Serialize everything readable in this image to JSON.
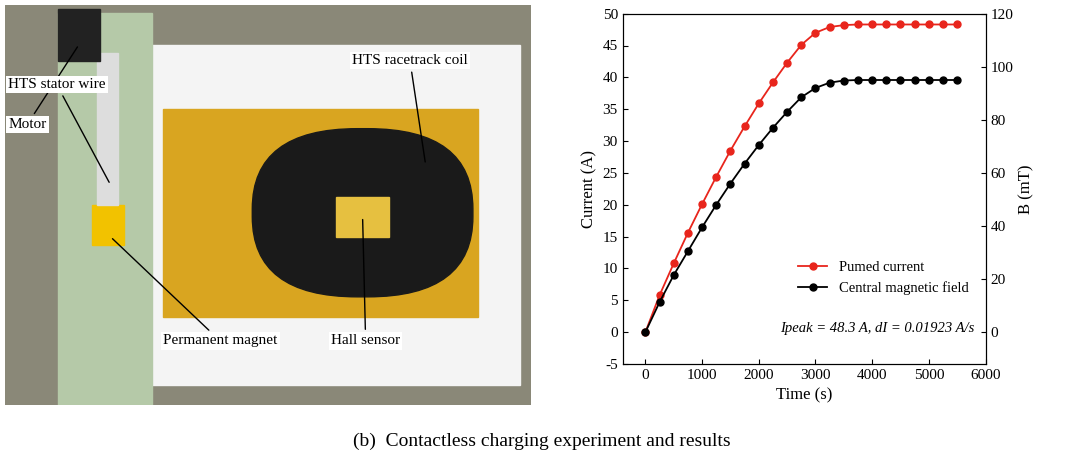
{
  "caption": "(b)  Contactless charging experiment and results",
  "photo": {
    "labels": [
      "Motor",
      "HTS stator wire",
      "Permanent magnet",
      "HTS racetrack coil",
      "Hall sensor"
    ]
  },
  "chart_data": {
    "type": "line",
    "xlabel": "Time (s)",
    "ylabel": "Current (A)",
    "y2label": "B (mT)",
    "x": [
      0,
      250,
      500,
      750,
      1000,
      1250,
      1500,
      1750,
      2000,
      2250,
      2500,
      2750,
      3000,
      3250,
      3500,
      3750,
      4000,
      4250,
      4500,
      4750,
      5000,
      5250,
      5500
    ],
    "series": [
      {
        "name": "Pumed current",
        "color": "#e8251c",
        "marker": "o",
        "axis": "y",
        "values": [
          0,
          5.8,
          10.8,
          15.6,
          20.1,
          24.4,
          28.5,
          32.3,
          35.9,
          39.2,
          42.3,
          45.1,
          47.0,
          47.9,
          48.2,
          48.3,
          48.3,
          48.3,
          48.3,
          48.3,
          48.3,
          48.3,
          48.3
        ]
      },
      {
        "name": "Central magnetic field",
        "color": "#000000",
        "marker": "o",
        "axis": "y2",
        "values": [
          0,
          11.3,
          21.5,
          30.5,
          39.5,
          48.0,
          56.0,
          63.5,
          70.5,
          77.0,
          83.0,
          88.5,
          92.0,
          94.0,
          94.8,
          95.0,
          95.0,
          95.0,
          95.0,
          95.0,
          95.0,
          95.0,
          95.0
        ]
      }
    ],
    "annotations": [
      "Ipeak = 48.3 A, dI = 0.01923 A/s"
    ],
    "xlim": [
      -400,
      6000
    ],
    "xticks": [
      0,
      1000,
      2000,
      3000,
      4000,
      5000,
      6000
    ],
    "ylim": [
      -5,
      50
    ],
    "yticks": [
      -5,
      0,
      5,
      10,
      15,
      20,
      25,
      30,
      35,
      40,
      45,
      50
    ],
    "y2lim": [
      -12,
      120
    ],
    "y2ticks": [
      0,
      20,
      40,
      60,
      80,
      100,
      120
    ],
    "legend": "lower right",
    "grid": false
  }
}
